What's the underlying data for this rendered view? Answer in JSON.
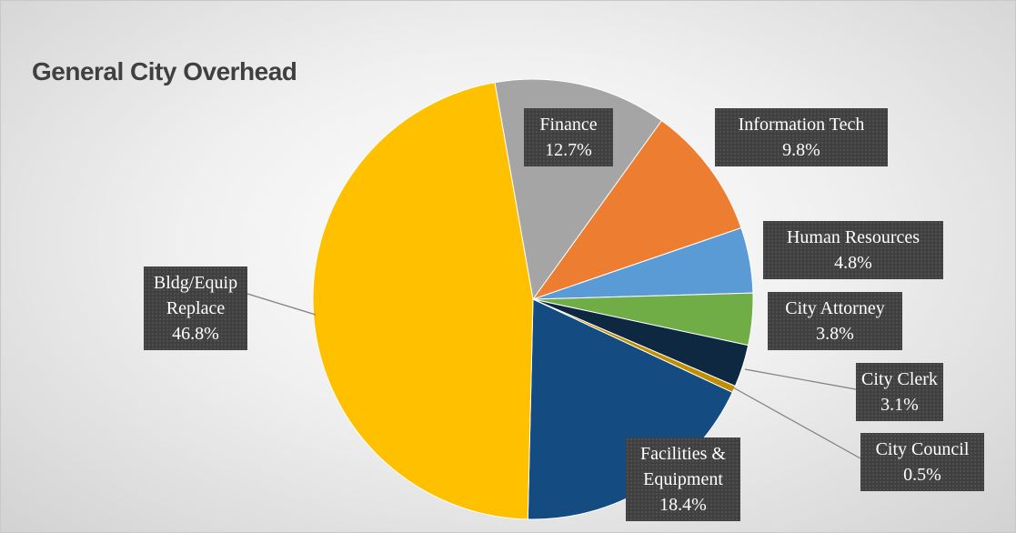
{
  "chart_data": {
    "type": "pie",
    "title": "General City Overhead",
    "categories": [
      "Finance",
      "Information Tech",
      "Human Resources",
      "City Attorney",
      "City Clerk",
      "City Council",
      "Facilities & Equipment",
      "Bldg/Equip Replace"
    ],
    "values": [
      12.7,
      9.8,
      4.8,
      3.8,
      3.1,
      0.5,
      18.4,
      46.8
    ],
    "value_labels": [
      "12.7%",
      "9.8%",
      "4.8%",
      "3.8%",
      "3.1%",
      "0.5%",
      "18.4%",
      "46.8%"
    ],
    "colors": [
      "#a5a5a5",
      "#ed7d31",
      "#5b9bd5",
      "#70ad47",
      "#0e2841",
      "#bf8f00",
      "#144b80",
      "#ffc000"
    ]
  }
}
